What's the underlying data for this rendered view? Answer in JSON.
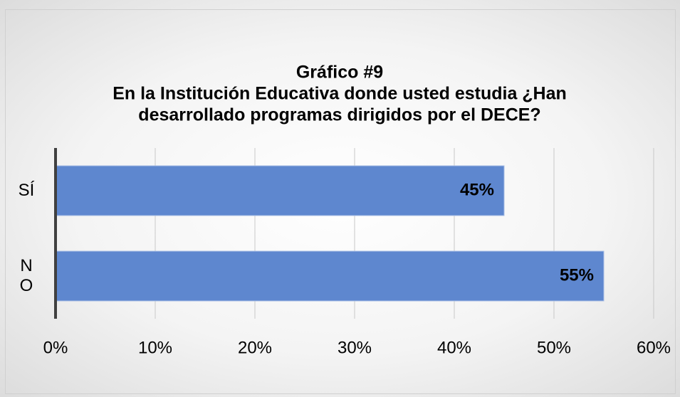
{
  "chart_data": {
    "type": "barh",
    "title": [
      "Gráfico #9",
      "En la Institución Educativa donde usted estudia ¿Han",
      "desarrollado programas dirigidos por el DECE?"
    ],
    "categories": [
      "SÍ",
      "NO"
    ],
    "values": [
      45,
      55
    ],
    "value_labels": [
      "45%",
      "55%"
    ],
    "color": "#5e87cf",
    "xlim": [
      0,
      60
    ],
    "xticks": [
      {
        "value": 0,
        "label": "0%"
      },
      {
        "value": 10,
        "label": "10%"
      },
      {
        "value": 20,
        "label": "20%"
      },
      {
        "value": 30,
        "label": "30%"
      },
      {
        "value": 40,
        "label": "40%"
      },
      {
        "value": 50,
        "label": "50%"
      },
      {
        "value": 60,
        "label": "60%"
      }
    ],
    "grid": true
  }
}
